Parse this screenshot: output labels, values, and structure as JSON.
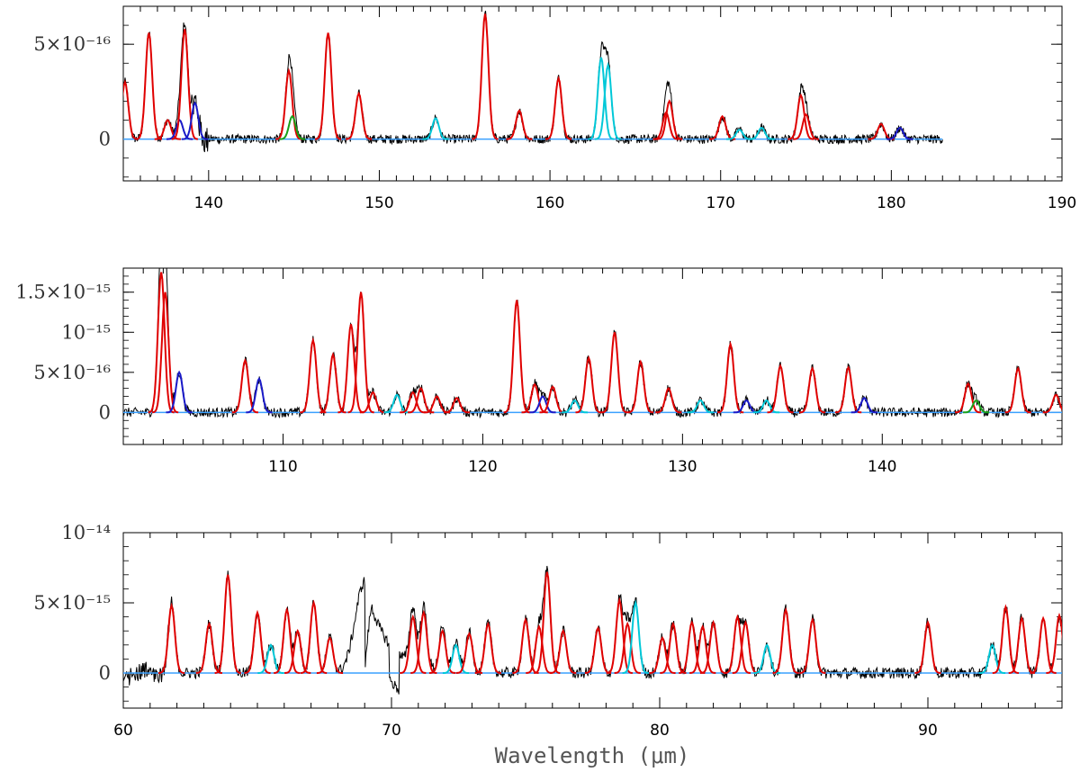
{
  "figure": {
    "xlabel": "Wavelength (μm)"
  },
  "colors": {
    "observed": "#000000",
    "model_main": "#e00000",
    "model_secondary": "#1a1ac8",
    "model_tertiary": "#00c8d8",
    "model_other": "#19a019",
    "continuum": "#3aa0ff"
  },
  "chart_data": [
    {
      "type": "line",
      "panel": "top",
      "xlim": [
        135,
        190
      ],
      "ylim": [
        -2.2e-16,
        7e-16
      ],
      "xticks": [
        140,
        150,
        160,
        170,
        180,
        190
      ],
      "xtick_labels": [
        "140",
        "150",
        "160",
        "170",
        "180",
        "190"
      ],
      "yticks": [
        0,
        5e-16
      ],
      "ytick_labels": [
        "0",
        "5×10⁻¹⁶"
      ],
      "data_end": 183,
      "noise_amp": 2.4e-17,
      "lines": [
        {
          "x": 135.1,
          "peak": 3e-16,
          "color": "red"
        },
        {
          "x": 136.5,
          "peak": 5.6e-16,
          "color": "red"
        },
        {
          "x": 137.6,
          "peak": 1e-16,
          "color": "red"
        },
        {
          "x": 138.3,
          "peak": 1e-16,
          "color": "blue"
        },
        {
          "x": 138.6,
          "peak": 5.8e-16,
          "color": "red"
        },
        {
          "x": 139.2,
          "peak": 1.9e-16,
          "color": "blue"
        },
        {
          "x": 144.7,
          "peak": 3.6e-16,
          "color": "red"
        },
        {
          "x": 144.9,
          "peak": 1.2e-16,
          "color": "green"
        },
        {
          "x": 147.0,
          "peak": 5.6e-16,
          "color": "red"
        },
        {
          "x": 148.8,
          "peak": 2.4e-16,
          "color": "red"
        },
        {
          "x": 153.3,
          "peak": 1.1e-16,
          "color": "cyan"
        },
        {
          "x": 156.2,
          "peak": 6.6e-16,
          "color": "red"
        },
        {
          "x": 158.2,
          "peak": 1.5e-16,
          "color": "red"
        },
        {
          "x": 160.5,
          "peak": 3.2e-16,
          "color": "red"
        },
        {
          "x": 163.0,
          "peak": 4.3e-16,
          "color": "cyan"
        },
        {
          "x": 163.4,
          "peak": 3.9e-16,
          "color": "cyan"
        },
        {
          "x": 166.8,
          "peak": 1.4e-16,
          "color": "red"
        },
        {
          "x": 167.0,
          "peak": 2e-16,
          "color": "red"
        },
        {
          "x": 170.1,
          "peak": 1.2e-16,
          "color": "red"
        },
        {
          "x": 171.1,
          "peak": 5e-17,
          "color": "cyan"
        },
        {
          "x": 172.4,
          "peak": 6e-17,
          "color": "cyan"
        },
        {
          "x": 174.7,
          "peak": 2.3e-16,
          "color": "red"
        },
        {
          "x": 175.0,
          "peak": 1.3e-16,
          "color": "red"
        },
        {
          "x": 179.4,
          "peak": 8e-17,
          "color": "red"
        },
        {
          "x": 180.5,
          "peak": 6e-17,
          "color": "blue"
        }
      ]
    },
    {
      "type": "line",
      "panel": "middle",
      "xlim": [
        102,
        149
      ],
      "ylim": [
        -4e-16,
        1.8e-15
      ],
      "xticks": [
        110,
        120,
        130,
        140
      ],
      "xtick_labels": [
        "110",
        "120",
        "130",
        "140"
      ],
      "yticks": [
        0,
        5e-16,
        1e-15,
        1.5e-15
      ],
      "ytick_labels": [
        "0",
        "5×10⁻¹⁶",
        "10⁻¹⁵",
        "1.5×10⁻¹⁵"
      ],
      "data_end": 149,
      "noise_amp": 6e-17,
      "lines": [
        {
          "x": 103.9,
          "peak": 1.75e-15,
          "color": "red"
        },
        {
          "x": 104.1,
          "peak": 1.5e-15,
          "color": "red"
        },
        {
          "x": 104.8,
          "peak": 5e-16,
          "color": "blue"
        },
        {
          "x": 108.1,
          "peak": 6.5e-16,
          "color": "red"
        },
        {
          "x": 108.8,
          "peak": 4.2e-16,
          "color": "blue"
        },
        {
          "x": 111.5,
          "peak": 9e-16,
          "color": "red"
        },
        {
          "x": 112.5,
          "peak": 7.2e-16,
          "color": "red"
        },
        {
          "x": 113.4,
          "peak": 1.1e-15,
          "color": "red"
        },
        {
          "x": 113.9,
          "peak": 1.5e-15,
          "color": "red"
        },
        {
          "x": 114.5,
          "peak": 2.5e-16,
          "color": "red"
        },
        {
          "x": 115.7,
          "peak": 2.2e-16,
          "color": "cyan"
        },
        {
          "x": 116.5,
          "peak": 2.5e-16,
          "color": "red"
        },
        {
          "x": 116.9,
          "peak": 3e-16,
          "color": "red"
        },
        {
          "x": 117.7,
          "peak": 2e-16,
          "color": "red"
        },
        {
          "x": 118.7,
          "peak": 1.8e-16,
          "color": "red"
        },
        {
          "x": 121.7,
          "peak": 1.4e-15,
          "color": "red"
        },
        {
          "x": 122.6,
          "peak": 3.5e-16,
          "color": "red"
        },
        {
          "x": 123.0,
          "peak": 2e-16,
          "color": "blue"
        },
        {
          "x": 123.5,
          "peak": 3.2e-16,
          "color": "red"
        },
        {
          "x": 124.6,
          "peak": 1.5e-16,
          "color": "cyan"
        },
        {
          "x": 125.3,
          "peak": 6.8e-16,
          "color": "red"
        },
        {
          "x": 126.6,
          "peak": 1e-15,
          "color": "red"
        },
        {
          "x": 127.9,
          "peak": 6.3e-16,
          "color": "red"
        },
        {
          "x": 129.3,
          "peak": 3e-16,
          "color": "red"
        },
        {
          "x": 130.9,
          "peak": 1.5e-16,
          "color": "cyan"
        },
        {
          "x": 132.4,
          "peak": 8.5e-16,
          "color": "red"
        },
        {
          "x": 133.2,
          "peak": 1.5e-16,
          "color": "blue"
        },
        {
          "x": 134.2,
          "peak": 1.5e-16,
          "color": "cyan"
        },
        {
          "x": 134.9,
          "peak": 5.8e-16,
          "color": "red"
        },
        {
          "x": 136.5,
          "peak": 5.5e-16,
          "color": "red"
        },
        {
          "x": 138.3,
          "peak": 5.6e-16,
          "color": "red"
        },
        {
          "x": 139.1,
          "peak": 1.8e-16,
          "color": "blue"
        },
        {
          "x": 144.3,
          "peak": 3.6e-16,
          "color": "red"
        },
        {
          "x": 144.7,
          "peak": 1.5e-16,
          "color": "green"
        },
        {
          "x": 146.8,
          "peak": 5.5e-16,
          "color": "red"
        },
        {
          "x": 148.7,
          "peak": 2.2e-16,
          "color": "red"
        }
      ]
    },
    {
      "type": "line",
      "panel": "bottom",
      "xlim": [
        60,
        95
      ],
      "ylim": [
        -2.5e-15,
        1e-14
      ],
      "xticks": [
        60,
        70,
        80,
        90
      ],
      "xtick_labels": [
        "60",
        "70",
        "80",
        "90"
      ],
      "yticks": [
        0,
        5e-15,
        1e-14
      ],
      "ytick_labels": [
        "0",
        "5×10⁻¹⁵",
        "10⁻¹⁴"
      ],
      "data_end": 95,
      "noise_amp": 4e-16,
      "lines": [
        {
          "x": 61.8,
          "peak": 4.8e-15,
          "color": "red"
        },
        {
          "x": 63.2,
          "peak": 3.5e-15,
          "color": "red"
        },
        {
          "x": 63.9,
          "peak": 7e-15,
          "color": "red"
        },
        {
          "x": 65.0,
          "peak": 4.3e-15,
          "color": "red"
        },
        {
          "x": 65.5,
          "peak": 2e-15,
          "color": "cyan"
        },
        {
          "x": 66.1,
          "peak": 4.5e-15,
          "color": "red"
        },
        {
          "x": 66.5,
          "peak": 3e-15,
          "color": "red"
        },
        {
          "x": 67.1,
          "peak": 5e-15,
          "color": "red"
        },
        {
          "x": 67.7,
          "peak": 2.5e-15,
          "color": "red"
        },
        {
          "x": 70.8,
          "peak": 4e-15,
          "color": "red"
        },
        {
          "x": 71.2,
          "peak": 4.3e-15,
          "color": "red"
        },
        {
          "x": 71.9,
          "peak": 3e-15,
          "color": "red"
        },
        {
          "x": 72.4,
          "peak": 2e-15,
          "color": "cyan"
        },
        {
          "x": 72.9,
          "peak": 2.8e-15,
          "color": "red"
        },
        {
          "x": 73.6,
          "peak": 3.5e-15,
          "color": "red"
        },
        {
          "x": 75.0,
          "peak": 3.8e-15,
          "color": "red"
        },
        {
          "x": 75.5,
          "peak": 3.3e-15,
          "color": "red"
        },
        {
          "x": 75.8,
          "peak": 7.2e-15,
          "color": "red"
        },
        {
          "x": 76.4,
          "peak": 3e-15,
          "color": "red"
        },
        {
          "x": 77.7,
          "peak": 3.2e-15,
          "color": "red"
        },
        {
          "x": 78.5,
          "peak": 5.2e-15,
          "color": "red"
        },
        {
          "x": 78.8,
          "peak": 3.5e-15,
          "color": "red"
        },
        {
          "x": 79.1,
          "peak": 5e-15,
          "color": "cyan"
        },
        {
          "x": 80.1,
          "peak": 2.5e-15,
          "color": "red"
        },
        {
          "x": 80.5,
          "peak": 3.5e-15,
          "color": "red"
        },
        {
          "x": 81.2,
          "peak": 3.6e-15,
          "color": "red"
        },
        {
          "x": 81.6,
          "peak": 3.3e-15,
          "color": "red"
        },
        {
          "x": 82.0,
          "peak": 3.6e-15,
          "color": "red"
        },
        {
          "x": 82.9,
          "peak": 4e-15,
          "color": "red"
        },
        {
          "x": 83.2,
          "peak": 3.6e-15,
          "color": "red"
        },
        {
          "x": 84.0,
          "peak": 2e-15,
          "color": "cyan"
        },
        {
          "x": 84.7,
          "peak": 4.5e-15,
          "color": "red"
        },
        {
          "x": 85.7,
          "peak": 3.8e-15,
          "color": "red"
        },
        {
          "x": 90.0,
          "peak": 3.6e-15,
          "color": "red"
        },
        {
          "x": 92.4,
          "peak": 2e-15,
          "color": "cyan"
        },
        {
          "x": 92.9,
          "peak": 4.7e-15,
          "color": "red"
        },
        {
          "x": 93.5,
          "peak": 3.9e-15,
          "color": "red"
        },
        {
          "x": 94.3,
          "peak": 3.9e-15,
          "color": "red"
        },
        {
          "x": 94.9,
          "peak": 4.1e-15,
          "color": "red"
        }
      ],
      "broad_feature": {
        "x": 69.0,
        "peak": 6.5e-15
      }
    }
  ]
}
